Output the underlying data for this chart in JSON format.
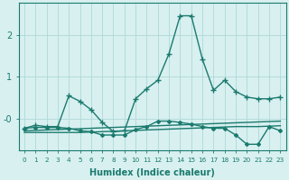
{
  "xlabel": "Humidex (Indice chaleur)",
  "bg_color": "#d8f0f0",
  "line_color": "#1a7a6e",
  "grid_color": "#b0d8d8",
  "xlim": [
    -0.5,
    23.5
  ],
  "ylim": [
    -0.75,
    2.75
  ],
  "yticks": [
    0,
    1,
    2
  ],
  "ytick_labels": [
    "-0",
    "1",
    "2"
  ],
  "x": [
    0,
    1,
    2,
    3,
    4,
    5,
    6,
    7,
    8,
    9,
    10,
    11,
    12,
    13,
    14,
    15,
    16,
    17,
    18,
    19,
    20,
    21,
    22,
    23
  ],
  "line1_y": [
    -0.22,
    -0.15,
    -0.18,
    -0.18,
    0.55,
    0.42,
    0.22,
    -0.08,
    -0.3,
    -0.28,
    0.48,
    0.72,
    0.92,
    1.55,
    2.45,
    2.45,
    1.42,
    0.68,
    0.92,
    0.65,
    0.52,
    0.48,
    0.48,
    0.52
  ],
  "line2_y": [
    -0.22,
    -0.2,
    -0.2,
    -0.2,
    -0.22,
    -0.28,
    -0.3,
    -0.38,
    -0.38,
    -0.38,
    -0.25,
    -0.18,
    -0.05,
    -0.05,
    -0.08,
    -0.12,
    -0.18,
    -0.22,
    -0.22,
    -0.38,
    -0.6,
    -0.6,
    -0.18,
    -0.28
  ],
  "line3_y": [
    -0.28,
    -0.27,
    -0.26,
    -0.25,
    -0.24,
    -0.23,
    -0.22,
    -0.21,
    -0.2,
    -0.19,
    -0.18,
    -0.17,
    -0.16,
    -0.15,
    -0.14,
    -0.13,
    -0.12,
    -0.11,
    -0.1,
    -0.09,
    -0.08,
    -0.07,
    -0.06,
    -0.05
  ],
  "line4_y": [
    -0.32,
    -0.32,
    -0.32,
    -0.32,
    -0.32,
    -0.32,
    -0.31,
    -0.3,
    -0.29,
    -0.28,
    -0.27,
    -0.26,
    -0.25,
    -0.24,
    -0.23,
    -0.22,
    -0.21,
    -0.2,
    -0.19,
    -0.18,
    -0.18,
    -0.18,
    -0.17,
    -0.16
  ]
}
